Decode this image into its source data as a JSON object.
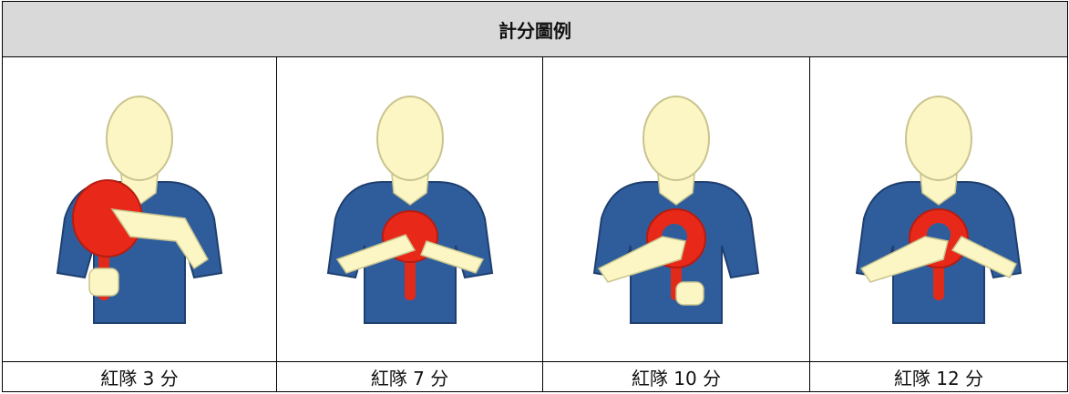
{
  "table": {
    "title": "計分圖例",
    "captions": [
      "紅隊 3 分",
      "紅隊 7 分",
      "紅隊 10 分",
      "紅隊 12 分"
    ]
  }
}
